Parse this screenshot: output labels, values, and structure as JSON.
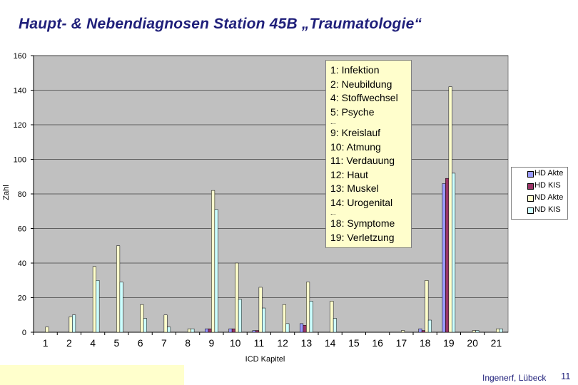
{
  "slide": {
    "title": "Haupt- & Nebendiagnosen Station 45B „Traumatologie“",
    "author": "Ingenerf, Lübeck",
    "page_number": "11"
  },
  "chart_data": {
    "type": "bar",
    "xlabel": "ICD Kapitel",
    "ylabel": "Zahl",
    "ylim": [
      0,
      160
    ],
    "yticks": [
      0,
      20,
      40,
      60,
      80,
      100,
      120,
      140,
      160
    ],
    "grid": "horizontal",
    "legend_position": "right",
    "plot_background": "#c0c0c0",
    "categories": [
      "1",
      "2",
      "4",
      "5",
      "6",
      "7",
      "8",
      "9",
      "10",
      "11",
      "12",
      "13",
      "14",
      "15",
      "16",
      "17",
      "18",
      "19",
      "20",
      "21"
    ],
    "series": [
      {
        "name": "HD Akte",
        "color": "#9999ff",
        "values": [
          0,
          0,
          0,
          0,
          0,
          0,
          0,
          2,
          2,
          1,
          0,
          5,
          0,
          0,
          0,
          0,
          2,
          86,
          0,
          0
        ]
      },
      {
        "name": "HD KIS",
        "color": "#993366",
        "values": [
          0,
          0,
          0,
          0,
          0,
          0,
          0,
          2,
          2,
          1,
          0,
          4,
          0,
          0,
          0,
          0,
          1,
          89,
          0,
          0
        ]
      },
      {
        "name": "ND Akte",
        "color": "#ffffcc",
        "values": [
          3,
          9,
          38,
          50,
          16,
          10,
          2,
          82,
          40,
          26,
          16,
          29,
          18,
          0,
          0,
          1,
          30,
          142,
          1,
          2
        ]
      },
      {
        "name": "ND KIS",
        "color": "#ccffff",
        "values": [
          0,
          10,
          30,
          29,
          8,
          3,
          2,
          71,
          19,
          14,
          5,
          18,
          8,
          0,
          0,
          0,
          7,
          92,
          1,
          2
        ]
      }
    ],
    "annotation": {
      "lines_a": [
        "1: Infektion",
        "2: Neubildung",
        "4: Stoffwechsel",
        "5: Psyche"
      ],
      "ellipsis_1": "...",
      "lines_b": [
        "9: Kreislauf",
        "10: Atmung",
        "11: Verdauung",
        "12: Haut",
        "13: Muskel",
        "14: Urogenital"
      ],
      "ellipsis_2": "...",
      "lines_c": [
        "18: Symptome",
        "19: Verletzung"
      ]
    }
  }
}
